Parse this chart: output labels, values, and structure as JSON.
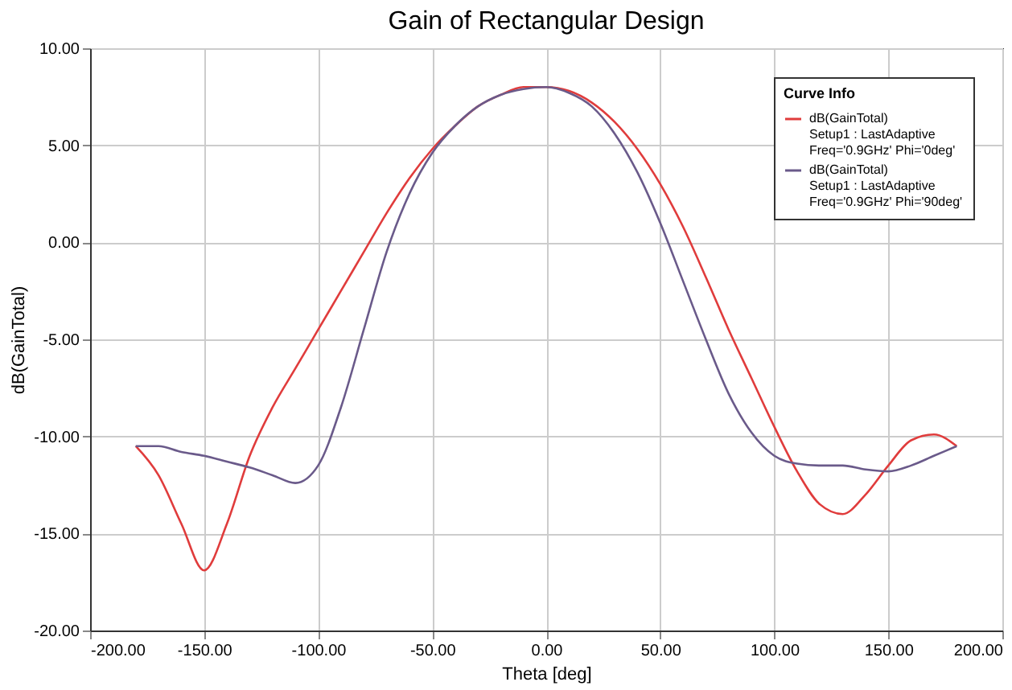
{
  "chart_data": {
    "type": "line",
    "title": "Gain of Rectangular Design",
    "xlabel": "Theta [deg]",
    "ylabel": "dB(GainTotal)",
    "legend_title": "Curve Info",
    "legend": "top right",
    "grid": true,
    "x": [
      -180,
      -170,
      -160,
      -150,
      -140,
      -130,
      -120,
      -110,
      -100,
      -90,
      -80,
      -70,
      -60,
      -50,
      -40,
      -30,
      -20,
      -10,
      0,
      10,
      20,
      30,
      40,
      50,
      60,
      70,
      80,
      90,
      100,
      110,
      120,
      130,
      140,
      150,
      160,
      170,
      180
    ],
    "series": [
      {
        "name": "dB(GainTotal)\nSetup1 : LastAdaptive\nFreq='0.9GHz' Phi='0deg'",
        "color": "#e03c3c",
        "values": [
          -10.5,
          -12,
          -14.5,
          -16.9,
          -14.5,
          -11,
          -8.5,
          -6.5,
          -4.5,
          -2.5,
          -0.5,
          1.5,
          3.3,
          4.8,
          6.0,
          7.0,
          7.6,
          8.0,
          8.0,
          7.8,
          7.2,
          6.2,
          4.8,
          3.0,
          0.8,
          -1.8,
          -4.5,
          -7.0,
          -9.5,
          -11.8,
          -13.5,
          -14.0,
          -13.0,
          -11.5,
          -10.2,
          -9.9,
          -10.5
        ]
      },
      {
        "name": "dB(GainTotal)\nSetup1 : LastAdaptive\nFreq='0.9GHz' Phi='90deg'",
        "color": "#6a5a8a",
        "values": [
          -10.5,
          -10.5,
          -10.8,
          -11.0,
          -11.3,
          -11.6,
          -12.0,
          -12.4,
          -11.5,
          -8.5,
          -4.5,
          -0.5,
          2.5,
          4.6,
          6.0,
          7.0,
          7.6,
          7.9,
          8.0,
          7.7,
          7.0,
          5.6,
          3.6,
          1.0,
          -2.0,
          -5.0,
          -7.8,
          -9.8,
          -11.0,
          -11.4,
          -11.5,
          -11.5,
          -11.7,
          -11.8,
          -11.5,
          -11.0,
          -10.5
        ]
      }
    ],
    "xlim": [
      -200,
      200
    ],
    "xticks": [
      {
        "value": -200,
        "label": "-200.00"
      },
      {
        "value": -150,
        "label": "-150.00"
      },
      {
        "value": -100,
        "label": "-100.00"
      },
      {
        "value": -50,
        "label": "-50.00"
      },
      {
        "value": 0,
        "label": "0.00"
      },
      {
        "value": 50,
        "label": "50.00"
      },
      {
        "value": 100,
        "label": "100.00"
      },
      {
        "value": 150,
        "label": "150.00"
      },
      {
        "value": 200,
        "label": "200.00"
      }
    ],
    "ylim": [
      -20,
      10
    ],
    "yticks": [
      {
        "value": -20,
        "label": "-20.00"
      },
      {
        "value": -15,
        "label": "-15.00"
      },
      {
        "value": -10,
        "label": "-10.00"
      },
      {
        "value": -5,
        "label": "-5.00"
      },
      {
        "value": 0,
        "label": "0.00"
      },
      {
        "value": 5,
        "label": "5.00"
      },
      {
        "value": 10,
        "label": "10.00"
      }
    ]
  }
}
